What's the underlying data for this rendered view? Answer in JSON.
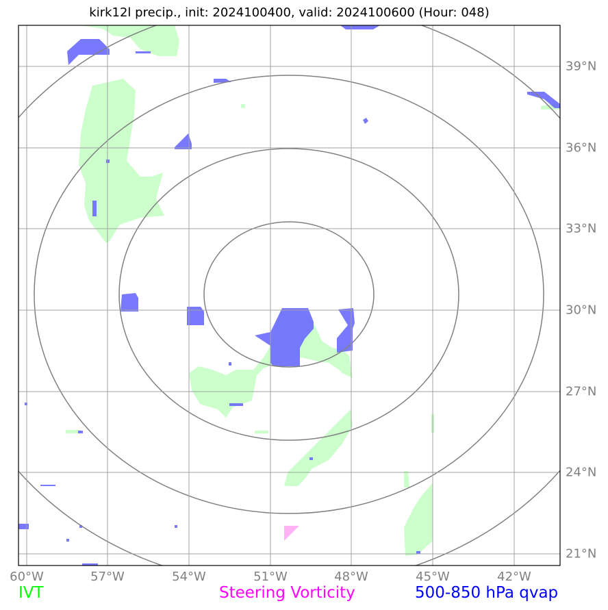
{
  "title": "kirk12l precip., init: 2024100400, valid: 2024100600 (Hour: 048)",
  "lon_labels": [
    "60°W",
    "57°W",
    "54°W",
    "51°W",
    "48°W",
    "45°W",
    "42°W"
  ],
  "lat_labels": [
    "39°N",
    "36°N",
    "33°N",
    "30°N",
    "27°N",
    "24°N",
    "21°N"
  ],
  "legend": [
    {
      "label": "IVT",
      "color": "#00ff00"
    },
    {
      "label": "Steering Vorticity",
      "color": "#ff00ff"
    },
    {
      "label": "500-850 hPa qvap",
      "color": "#0000ff"
    }
  ],
  "colors": {
    "ivt_fill": "#ccffcc",
    "qvap_fill": "#6666ff",
    "vorticity_fill": "#ffb3f5",
    "grid": "#a0a0a0",
    "range_rings": "#808080",
    "tick_labels": "#808080"
  }
}
